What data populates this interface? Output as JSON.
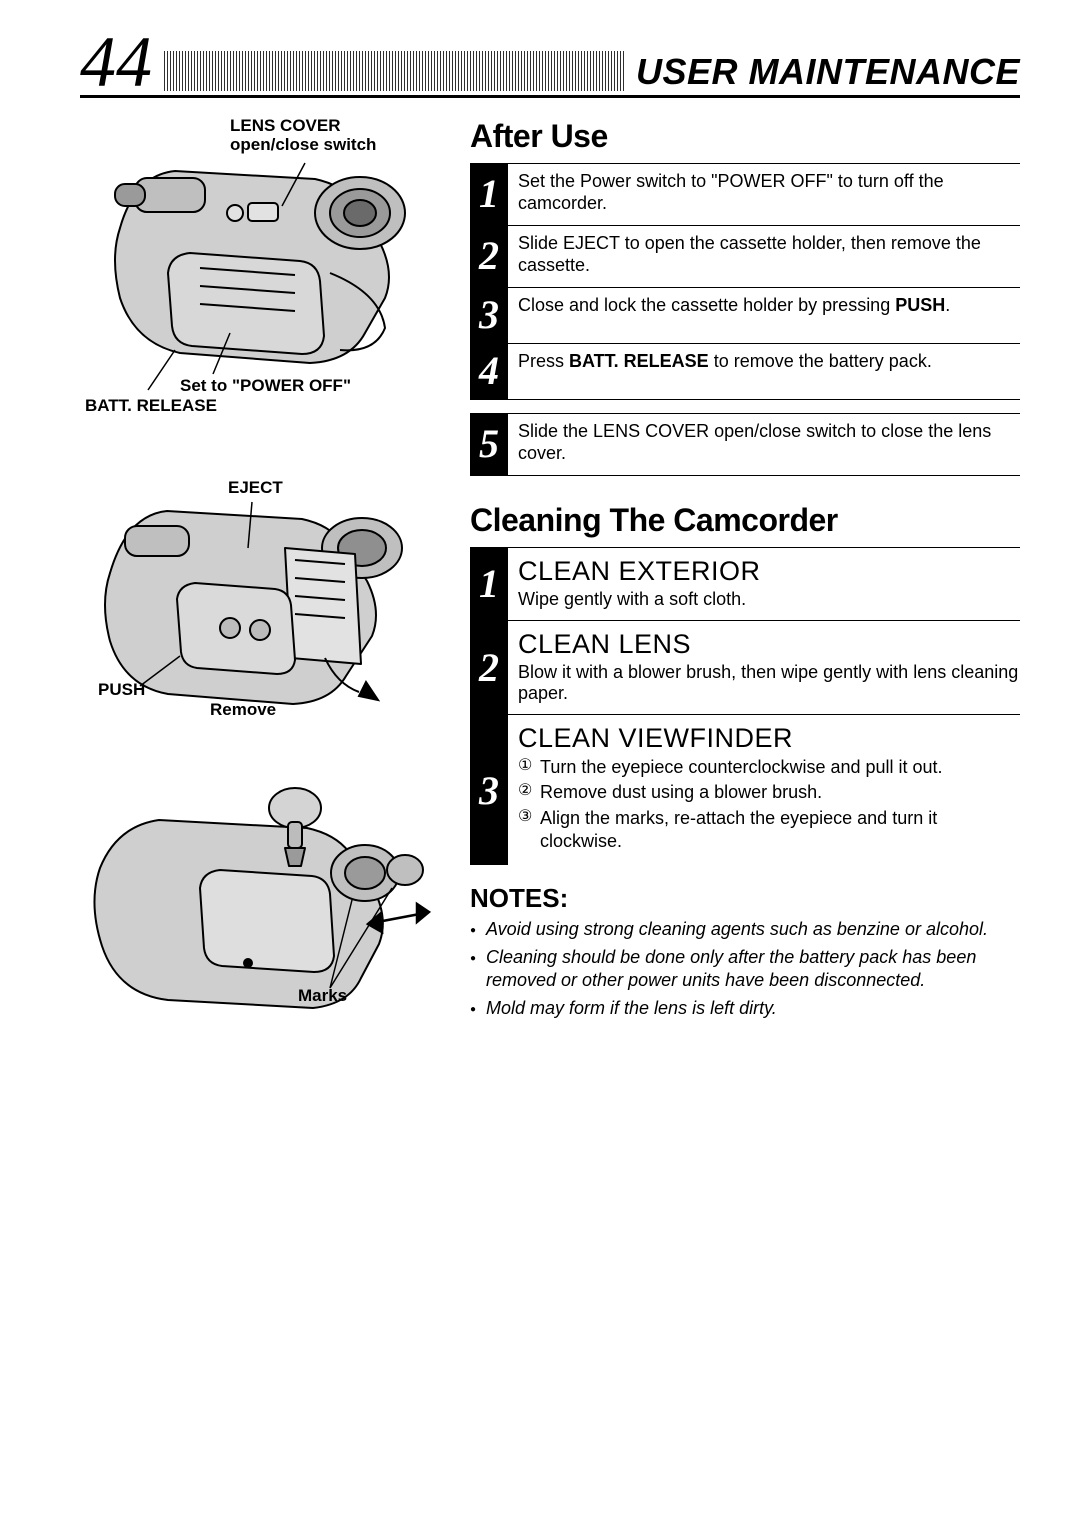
{
  "page_number": "44",
  "header_title": "USER MAINTENANCE",
  "colors": {
    "text": "#000000",
    "background": "#ffffff",
    "step_bg": "#000000",
    "step_fg": "#ffffff",
    "rule": "#000000"
  },
  "typography": {
    "page_number_fontsize": 72,
    "header_title_fontsize": 36,
    "section_title_fontsize": 32,
    "subhead_fontsize": 27,
    "body_fontsize": 18,
    "step_num_fontsize": 40,
    "callout_fontsize": 17,
    "notes_title_fontsize": 26
  },
  "diagrams": {
    "d1": {
      "callouts": {
        "lens_cover_l1": "LENS COVER",
        "lens_cover_l2": "open/close switch",
        "power_off": "Set to \"POWER OFF\"",
        "batt_release": "BATT. RELEASE"
      }
    },
    "d2": {
      "callouts": {
        "eject": "EJECT",
        "push": "PUSH",
        "remove": "Remove"
      }
    },
    "d3": {
      "callouts": {
        "marks": "Marks"
      }
    }
  },
  "after_use": {
    "title": "After Use",
    "steps": [
      {
        "n": "1",
        "html": "Set the Power switch to \"POWER OFF\" to turn off the camcorder."
      },
      {
        "n": "2",
        "html": "Slide EJECT to open the cassette holder, then remove the cassette."
      },
      {
        "n": "3",
        "html": "Close and lock the cassette holder by pressing <b>PUSH</b>."
      },
      {
        "n": "4",
        "html": "Press <b>BATT. RELEASE</b> to remove the battery pack."
      },
      {
        "n": "5",
        "html": "Slide the LENS COVER open/close switch to close the lens cover."
      }
    ]
  },
  "cleaning": {
    "title": "Cleaning The Camcorder",
    "groups": [
      {
        "n": "1",
        "subhead": "CLEAN EXTERIOR",
        "body": "Wipe gently with a soft cloth."
      },
      {
        "n": "2",
        "subhead": "CLEAN LENS",
        "body": "Blow it with a blower brush, then wipe gently with lens cleaning paper."
      },
      {
        "n": "3",
        "subhead": "CLEAN VIEWFINDER",
        "items": [
          {
            "circ": "①",
            "text": "Turn the eyepiece counterclockwise and pull it out."
          },
          {
            "circ": "②",
            "text": "Remove dust using a blower brush."
          },
          {
            "circ": "③",
            "text": "Align the marks, re-attach the eyepiece and turn it clockwise."
          }
        ]
      }
    ]
  },
  "notes": {
    "title": "NOTES:",
    "items": [
      "Avoid using strong cleaning agents such as benzine or alcohol.",
      "Cleaning should be done only after the battery pack has been removed or other power units have been disconnected.",
      "Mold may form if the lens is left dirty."
    ]
  }
}
